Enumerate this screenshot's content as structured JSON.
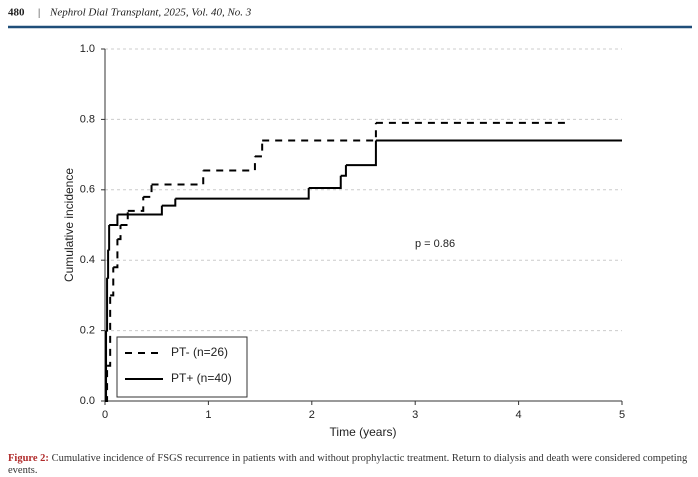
{
  "header": {
    "page": "480",
    "journal": "Nephrol Dial Transplant, 2025, Vol. 40, No. 3"
  },
  "caption": {
    "label": "Figure 2:",
    "text": "Cumulative incidence of FSGS recurrence in patients with and without prophylactic treatment. Return to dialysis and death were considered competing events."
  },
  "chart_data": {
    "type": "step",
    "xlabel": "Time (years)",
    "ylabel": "Cumulative incidence",
    "xlim": [
      0,
      5
    ],
    "xticks": [
      0,
      1,
      2,
      3,
      4,
      5
    ],
    "ylim": [
      0,
      1
    ],
    "yticks": [
      {
        "value": 0,
        "label": "0.0"
      },
      0.2,
      0.4,
      0.6,
      0.8,
      {
        "value": 1,
        "label": "1.0"
      }
    ],
    "grid": true,
    "legend": "lower left",
    "annotation": "p = 0.86",
    "series": [
      {
        "name": "PT- (n=26)",
        "color": "#000000",
        "dash": "dashed",
        "x": [
          0,
          0.02,
          0.05,
          0.08,
          0.12,
          0.15,
          0.22,
          0.37,
          0.45,
          0.95,
          1.45,
          1.52,
          2.62,
          4.5
        ],
        "values": [
          0,
          0.1,
          0.3,
          0.38,
          0.46,
          0.5,
          0.54,
          0.58,
          0.615,
          0.655,
          0.695,
          0.74,
          0.79,
          0.79
        ]
      },
      {
        "name": "PT+ (n=40)",
        "color": "#000000",
        "dash": "solid",
        "x": [
          0,
          0.01,
          0.02,
          0.03,
          0.04,
          0.12,
          0.55,
          0.68,
          1.97,
          2.28,
          2.33,
          2.62,
          5
        ],
        "values": [
          0,
          0.2,
          0.35,
          0.43,
          0.5,
          0.53,
          0.555,
          0.575,
          0.605,
          0.64,
          0.67,
          0.74,
          0.74
        ]
      }
    ]
  }
}
